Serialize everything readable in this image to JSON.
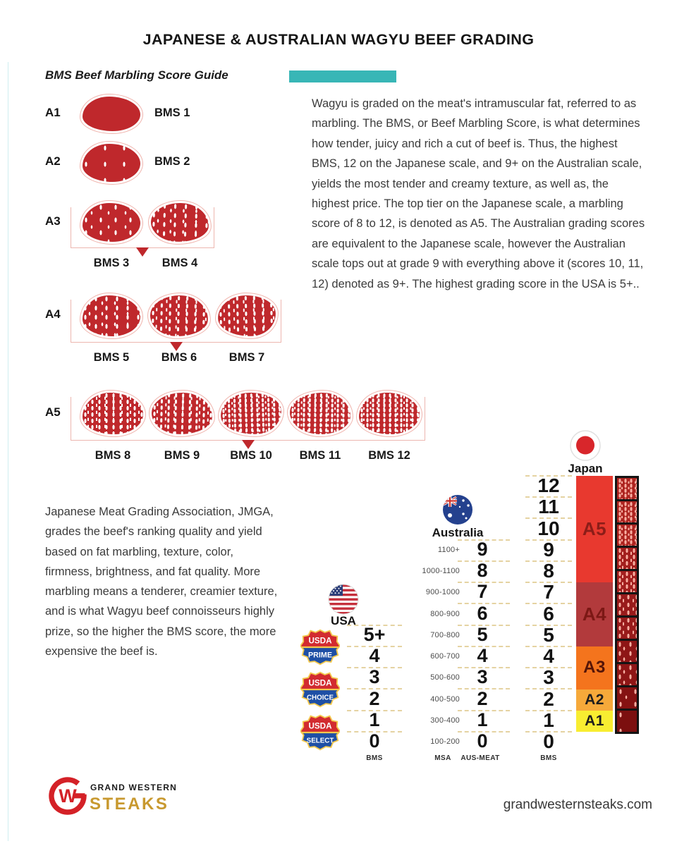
{
  "title": "JAPANESE & AUSTRALIAN WAGYU BEEF GRADING",
  "accent": {
    "teal": "#38b6b6",
    "steak_red": "#bf282c"
  },
  "bms_guide": {
    "heading": "BMS Beef Marbling Score Guide",
    "rows": [
      {
        "grade": "A1",
        "labels": [
          "BMS 1"
        ],
        "marbling": [
          0
        ],
        "bracket": false
      },
      {
        "grade": "A2",
        "labels": [
          "BMS 2"
        ],
        "marbling": [
          1
        ],
        "bracket": false
      },
      {
        "grade": "A3",
        "labels": [
          "BMS 3",
          "BMS 4"
        ],
        "marbling": [
          2,
          3
        ],
        "bracket": true
      },
      {
        "grade": "A4",
        "labels": [
          "BMS 5",
          "BMS 6",
          "BMS 7"
        ],
        "marbling": [
          3,
          4,
          4
        ],
        "bracket": true
      },
      {
        "grade": "A5",
        "labels": [
          "BMS 8",
          "BMS 9",
          "BMS 10",
          "BMS 11",
          "BMS 12"
        ],
        "marbling": [
          5,
          5,
          6,
          6,
          6
        ],
        "bracket": true
      }
    ]
  },
  "intro_text": "Wagyu is graded on the meat's intramuscular fat, referred to as marbling. The BMS, or Beef Marbling Score, is what determines how tender, juicy and rich a cut of beef is. Thus, the highest BMS, 12 on the Japanese scale, and 9+ on the Australian scale, yields the most tender and creamy texture, as well as, the highest price. The top tier on the Japanese scale, a marbling score of 8 to 12, is denoted as A5. The Australian grading scores are equivalent to the Japanese scale, however the Australian scale tops out at grade 9 with everything above it (scores 10, 11, 12) denoted as 9+. The highest grading score in the USA is 5+..",
  "jmga_text": "Japanese Meat Grading Association, JMGA, grades the beef's ranking quality and yield based on fat marbling, texture, color, firmness, brightness, and fat quality. More marbling means a tenderer, creamier texture, and is what Wagyu beef connoisseurs highly prize, so the higher the BMS score, the more expensive the beef is.",
  "chart": {
    "usa": {
      "country": "USA",
      "axis": "BMS",
      "badges": [
        {
          "top": "USDA",
          "bottom": "PRIME"
        },
        {
          "top": "USDA",
          "bottom": "CHOICE"
        },
        {
          "top": "USDA",
          "bottom": "SELECT"
        }
      ],
      "scores": [
        "5+",
        "4",
        "3",
        "2",
        "1",
        "0"
      ]
    },
    "australia": {
      "country": "Australia",
      "axis_left": "MSA",
      "axis_right": "AUS-MEAT",
      "rows": [
        [
          "1100+",
          "9"
        ],
        [
          "1000-1100",
          "8"
        ],
        [
          "900-1000",
          "7"
        ],
        [
          "800-900",
          "6"
        ],
        [
          "700-800",
          "5"
        ],
        [
          "600-700",
          "4"
        ],
        [
          "500-600",
          "3"
        ],
        [
          "400-500",
          "2"
        ],
        [
          "300-400",
          "1"
        ],
        [
          "100-200",
          "0"
        ]
      ]
    },
    "japan": {
      "country": "Japan",
      "axis": "BMS",
      "scores": [
        "12",
        "11",
        "10",
        "9",
        "8",
        "7",
        "6",
        "5",
        "4",
        "3",
        "2",
        "1",
        "0"
      ],
      "grades": [
        {
          "label": "A5",
          "rows": 5,
          "color": "#e8392f",
          "text": "#8c1d18"
        },
        {
          "label": "A4",
          "rows": 3,
          "color": "#b23a3c",
          "text": "#7c1815"
        },
        {
          "label": "A3",
          "rows": 2,
          "color": "#f4741d",
          "text": "#551508"
        },
        {
          "label": "A2",
          "rows": 1,
          "color": "#f6a93a",
          "text": "#1d1d1d"
        },
        {
          "label": "A1",
          "rows": 1,
          "color": "#f8ed31",
          "text": "#1d1d1d"
        }
      ],
      "marbling_levels": [
        6,
        6,
        6,
        5,
        5,
        4,
        4,
        3,
        3,
        2,
        1
      ]
    }
  },
  "footer": {
    "brand_line1": "GRAND WESTERN",
    "brand_line2": "STEAKS",
    "website": "grandwesternsteaks.com"
  }
}
